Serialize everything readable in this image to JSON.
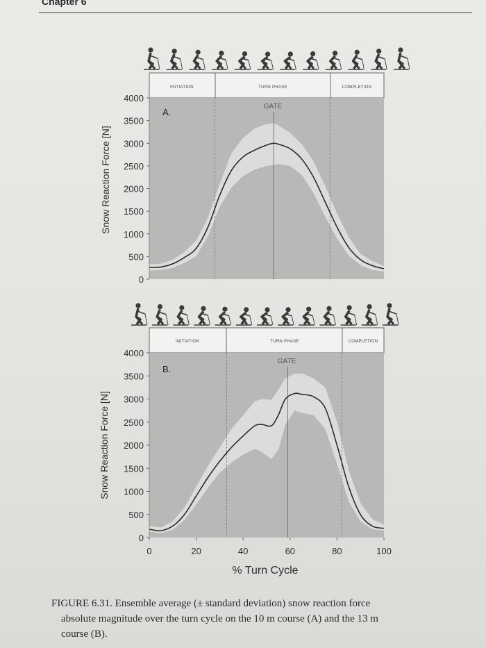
{
  "header": {
    "chapter": "Chapter 6"
  },
  "caption": {
    "line1": "FIGURE 6.31. Ensemble average (± standard deviation) snow reaction force",
    "line2": "absolute magnitude over the turn cycle on the 10 m course (A) and the 13 m",
    "line3": "course (B)."
  },
  "colors": {
    "plot_background": "#b8b9b7",
    "sd_band": "#dcdddb",
    "mean_line": "#2a2a2a",
    "skier_silhouette": "#3a3a3a"
  },
  "chart_data": [
    {
      "type": "line",
      "panel_label": "A.",
      "phases": [
        "INITIATION",
        "TURN PHASE",
        "COMPLETION"
      ],
      "phase_boundaries": [
        28,
        77
      ],
      "gate_label": "GATE",
      "gate_x": 53,
      "xlabel": "",
      "ylabel": "Snow Reaction Force [N]",
      "xlim": [
        0,
        100
      ],
      "ylim": [
        0,
        4000
      ],
      "yticks": [
        0,
        500,
        1000,
        1500,
        2000,
        2500,
        3000,
        3500,
        4000
      ],
      "x": [
        0,
        5,
        10,
        15,
        20,
        25,
        30,
        35,
        40,
        45,
        50,
        53,
        55,
        60,
        65,
        70,
        75,
        80,
        85,
        90,
        95,
        100
      ],
      "series": [
        {
          "mean": [
            260,
            270,
            340,
            480,
            680,
            1150,
            1850,
            2400,
            2700,
            2850,
            2960,
            3000,
            2980,
            2880,
            2650,
            2250,
            1700,
            1150,
            700,
            430,
            300,
            230
          ],
          "upper": [
            330,
            340,
            430,
            600,
            850,
            1350,
            2100,
            2780,
            3120,
            3330,
            3420,
            3440,
            3400,
            3230,
            2980,
            2600,
            2050,
            1450,
            930,
            560,
            400,
            290
          ],
          "lower": [
            190,
            200,
            250,
            360,
            510,
            950,
            1600,
            2020,
            2280,
            2420,
            2500,
            2520,
            2540,
            2500,
            2300,
            1900,
            1380,
            900,
            520,
            310,
            200,
            170
          ]
        }
      ]
    },
    {
      "type": "line",
      "panel_label": "B.",
      "phases": [
        "INITIATION",
        "TURN PHASE",
        "COMPLETION"
      ],
      "phase_boundaries": [
        33,
        82
      ],
      "gate_label": "GATE",
      "gate_x": 59,
      "xlabel": "% Turn Cycle",
      "ylabel": "Snow Reaction Force [N]",
      "xlim": [
        0,
        100
      ],
      "ylim": [
        0,
        4000
      ],
      "yticks": [
        0,
        500,
        1000,
        1500,
        2000,
        2500,
        3000,
        3500,
        4000
      ],
      "xticks": [
        0,
        20,
        40,
        60,
        80,
        100
      ],
      "x": [
        0,
        5,
        10,
        15,
        20,
        25,
        30,
        35,
        40,
        45,
        48,
        52,
        55,
        58,
        62,
        65,
        70,
        75,
        80,
        85,
        90,
        95,
        100
      ],
      "series": [
        {
          "mean": [
            180,
            150,
            250,
            500,
            900,
            1300,
            1650,
            1950,
            2200,
            2420,
            2450,
            2420,
            2650,
            3000,
            3120,
            3100,
            3050,
            2800,
            2000,
            1100,
            500,
            250,
            200
          ],
          "upper": [
            250,
            220,
            350,
            650,
            1100,
            1550,
            1950,
            2350,
            2650,
            2950,
            3000,
            2980,
            3200,
            3450,
            3550,
            3550,
            3450,
            3250,
            2500,
            1450,
            750,
            400,
            280
          ],
          "lower": [
            130,
            100,
            170,
            380,
            720,
            1080,
            1400,
            1620,
            1800,
            1920,
            1850,
            1700,
            1900,
            2450,
            2750,
            2700,
            2650,
            2350,
            1600,
            780,
            350,
            180,
            150
          ]
        }
      ]
    }
  ]
}
